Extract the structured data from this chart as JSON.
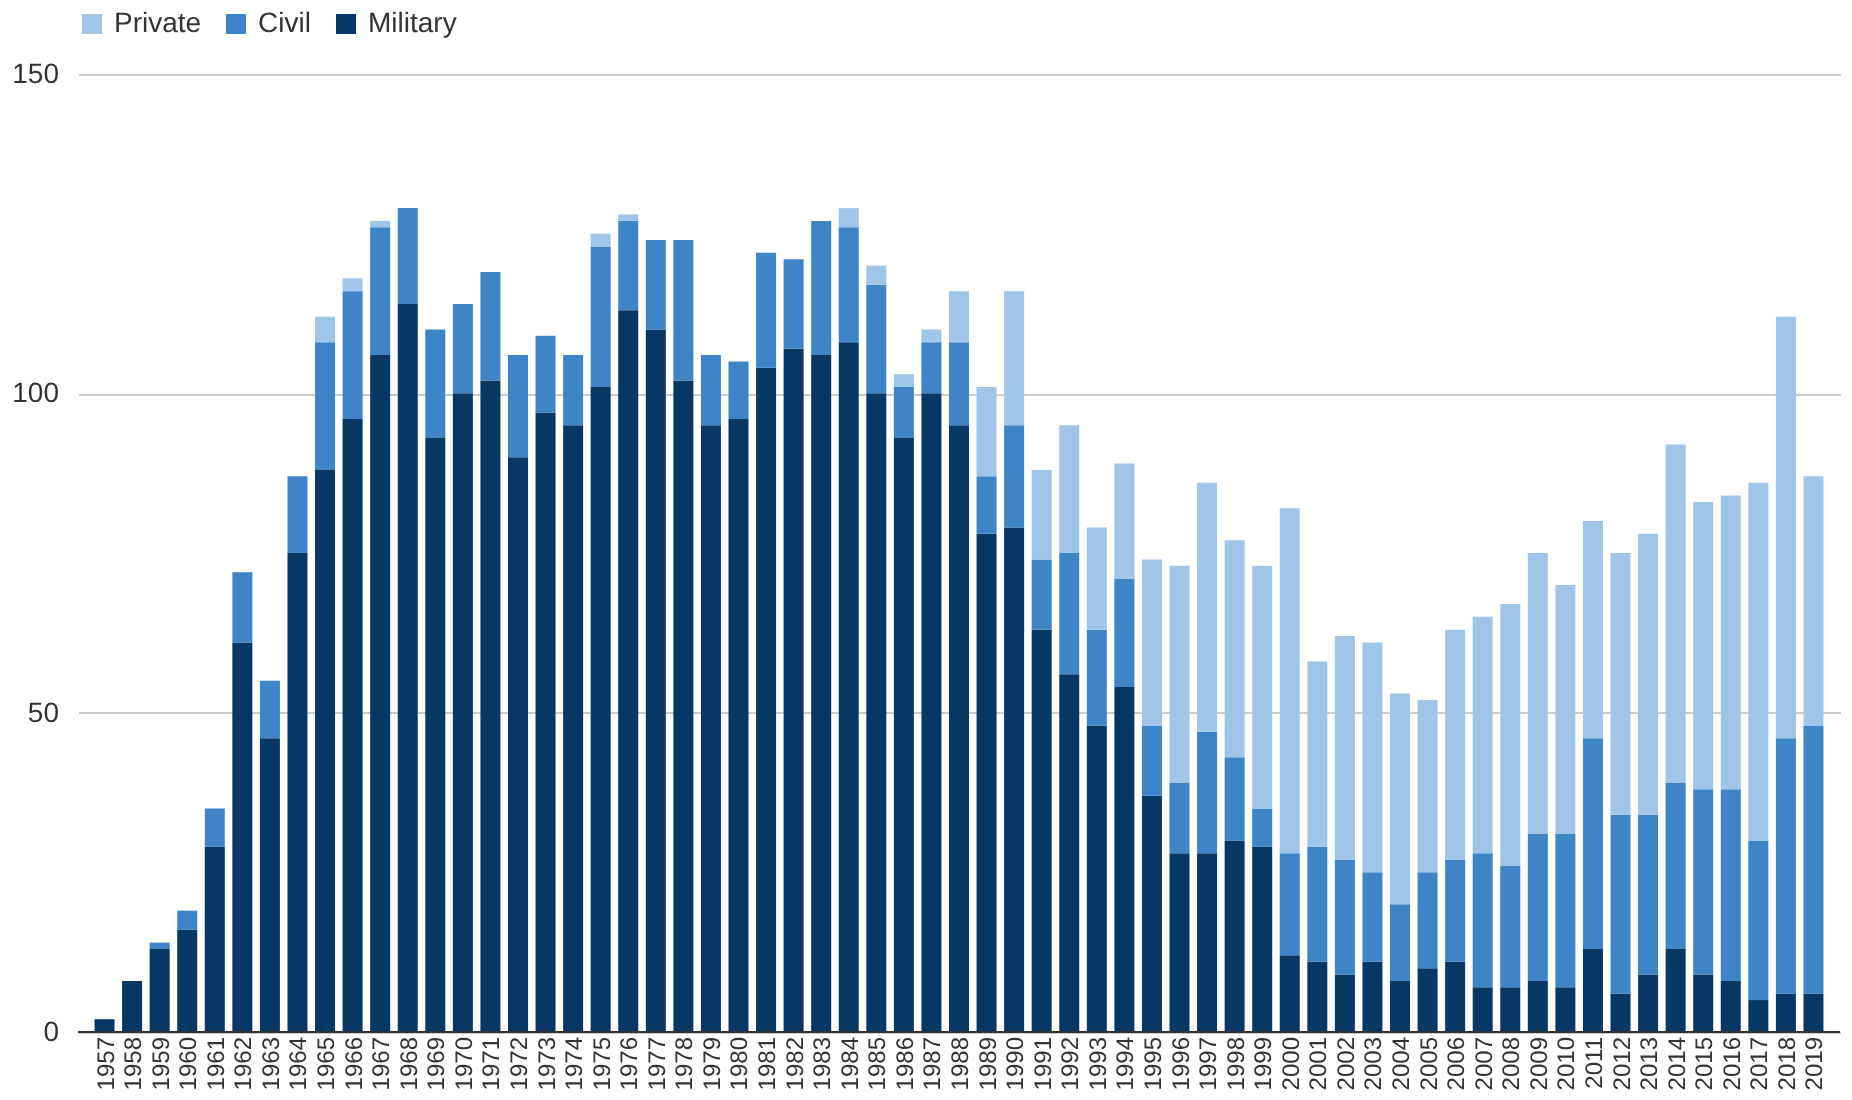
{
  "chart_data": {
    "type": "bar",
    "stacked": true,
    "categories": [
      "1957",
      "1958",
      "1959",
      "1960",
      "1961",
      "1962",
      "1963",
      "1964",
      "1965",
      "1966",
      "1967",
      "1968",
      "1969",
      "1970",
      "1971",
      "1972",
      "1973",
      "1974",
      "1975",
      "1976",
      "1977",
      "1978",
      "1979",
      "1980",
      "1981",
      "1982",
      "1983",
      "1984",
      "1985",
      "1986",
      "1987",
      "1988",
      "1989",
      "1990",
      "1991",
      "1992",
      "1993",
      "1994",
      "1995",
      "1996",
      "1997",
      "1998",
      "1999",
      "2000",
      "2001",
      "2002",
      "2003",
      "2004",
      "2005",
      "2006",
      "2007",
      "2008",
      "2009",
      "2010",
      "2011",
      "2012",
      "2013",
      "2014",
      "2015",
      "2016",
      "2017",
      "2018",
      "2019"
    ],
    "series": [
      {
        "name": "Military",
        "color": "#073763",
        "values": [
          2,
          8,
          13,
          16,
          29,
          61,
          46,
          75,
          88,
          96,
          106,
          114,
          93,
          100,
          102,
          90,
          97,
          95,
          101,
          113,
          110,
          102,
          95,
          96,
          104,
          107,
          106,
          108,
          100,
          93,
          100,
          95,
          78,
          79,
          63,
          56,
          48,
          54,
          37,
          28,
          28,
          30,
          29,
          12,
          11,
          9,
          11,
          8,
          10,
          11,
          7,
          7,
          8,
          7,
          13,
          6,
          9,
          13,
          9,
          8,
          5,
          6,
          6
        ]
      },
      {
        "name": "Civil",
        "color": "#3d85c6",
        "values": [
          0,
          0,
          1,
          3,
          6,
          11,
          9,
          12,
          20,
          20,
          20,
          15,
          17,
          14,
          17,
          16,
          12,
          11,
          22,
          14,
          14,
          22,
          11,
          9,
          18,
          14,
          21,
          18,
          17,
          8,
          8,
          13,
          9,
          16,
          11,
          19,
          15,
          17,
          11,
          11,
          19,
          13,
          6,
          16,
          18,
          18,
          14,
          12,
          15,
          16,
          21,
          19,
          23,
          24,
          33,
          28,
          25,
          26,
          29,
          30,
          25,
          40,
          42
        ]
      },
      {
        "name": "Private",
        "color": "#9fc5e8",
        "values": [
          0,
          0,
          0,
          0,
          0,
          0,
          0,
          0,
          4,
          2,
          1,
          0,
          0,
          0,
          0,
          0,
          0,
          0,
          2,
          1,
          0,
          0,
          0,
          0,
          0,
          0,
          0,
          3,
          3,
          2,
          2,
          8,
          14,
          21,
          14,
          20,
          16,
          18,
          26,
          34,
          39,
          34,
          38,
          54,
          29,
          35,
          36,
          33,
          27,
          36,
          37,
          41,
          44,
          39,
          34,
          41,
          44,
          53,
          45,
          46,
          56,
          66,
          39
        ]
      }
    ],
    "ylim": [
      0,
      150
    ],
    "yticks": [
      0,
      50,
      100,
      150
    ],
    "grid": "y",
    "legend": "top"
  }
}
